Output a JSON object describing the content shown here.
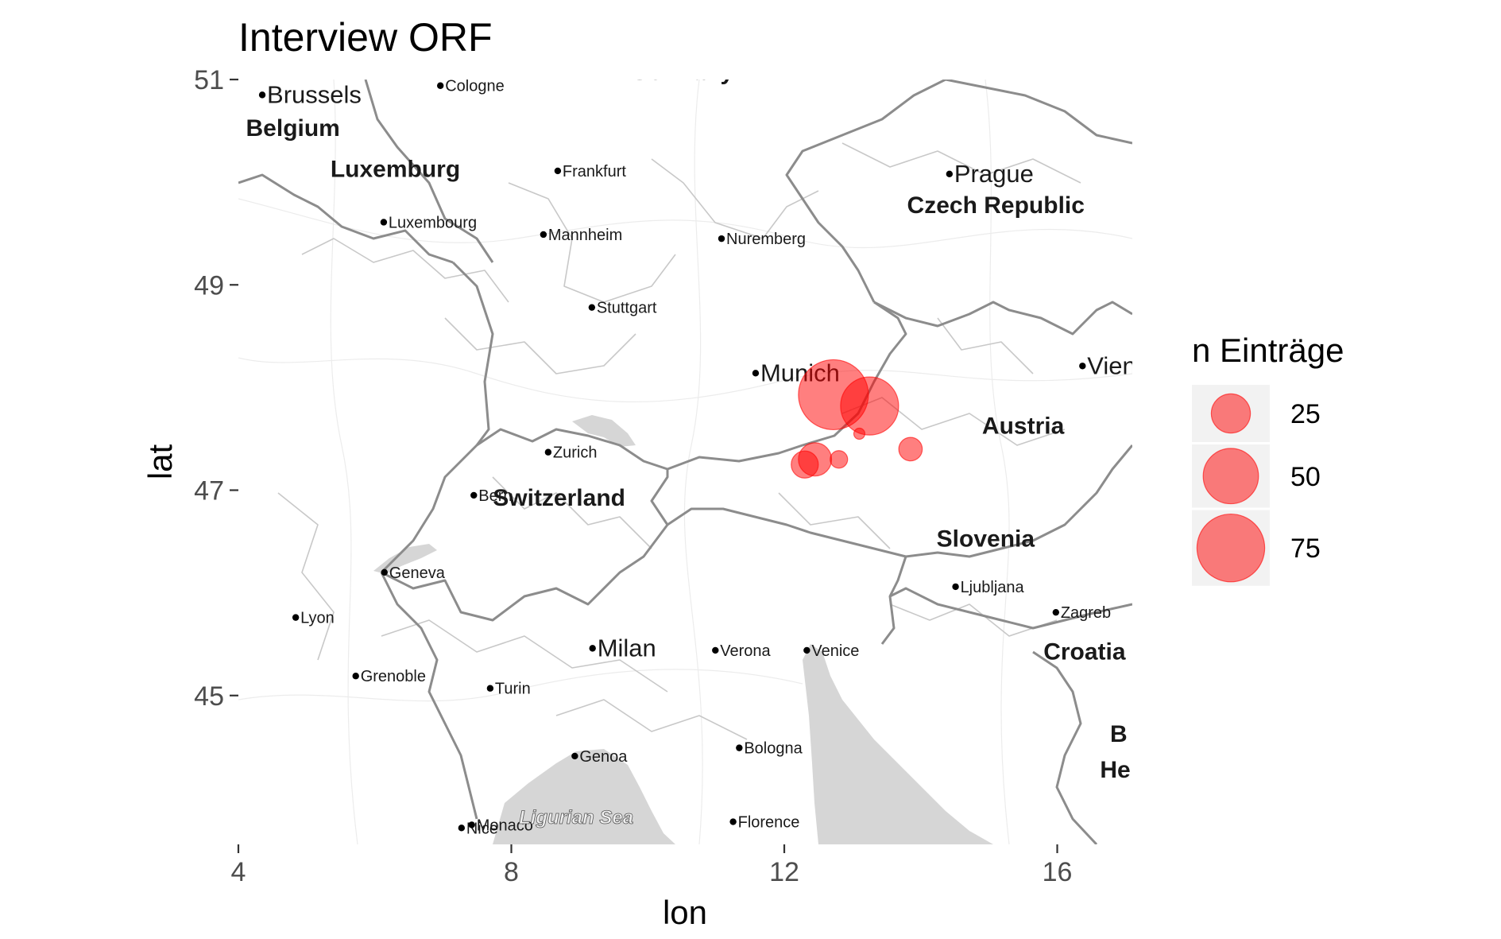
{
  "title": "Interview ORF",
  "xlabel": "lon",
  "ylabel": "lat",
  "colors": {
    "point_fill": "#ff0000",
    "point_opacity": 0.5,
    "water": "#d6d6d6",
    "legend_key_bg": "#f2f2f2"
  },
  "map": {
    "cities": [
      {
        "name": "Brussels",
        "lon": 4.35,
        "lat": 50.85,
        "size": "large"
      },
      {
        "name": "Cologne",
        "lon": 6.96,
        "lat": 50.94,
        "size": "small"
      },
      {
        "name": "Frankfurt",
        "lon": 8.68,
        "lat": 50.11,
        "size": "small"
      },
      {
        "name": "Prague",
        "lon": 14.42,
        "lat": 50.08,
        "size": "large"
      },
      {
        "name": "Luxembourg",
        "lon": 6.13,
        "lat": 49.61,
        "size": "small"
      },
      {
        "name": "Mannheim",
        "lon": 8.47,
        "lat": 49.49,
        "size": "small"
      },
      {
        "name": "Nuremberg",
        "lon": 11.08,
        "lat": 49.45,
        "size": "small"
      },
      {
        "name": "Stuttgart",
        "lon": 9.18,
        "lat": 48.78,
        "size": "small"
      },
      {
        "name": "Munich",
        "lon": 11.58,
        "lat": 48.14,
        "size": "large"
      },
      {
        "name": "Vienna",
        "lon": 16.37,
        "lat": 48.21,
        "size": "large"
      },
      {
        "name": "Zurich",
        "lon": 8.54,
        "lat": 47.37,
        "size": "small"
      },
      {
        "name": "Bern",
        "lon": 7.45,
        "lat": 46.95,
        "size": "small"
      },
      {
        "name": "Geneva",
        "lon": 6.14,
        "lat": 46.2,
        "size": "small"
      },
      {
        "name": "Lyon",
        "lon": 4.84,
        "lat": 45.76,
        "size": "small"
      },
      {
        "name": "Ljubljana",
        "lon": 14.51,
        "lat": 46.06,
        "size": "small"
      },
      {
        "name": "Zagreb",
        "lon": 15.98,
        "lat": 45.81,
        "size": "small"
      },
      {
        "name": "Milan",
        "lon": 9.19,
        "lat": 45.46,
        "size": "large"
      },
      {
        "name": "Verona",
        "lon": 10.99,
        "lat": 45.44,
        "size": "small"
      },
      {
        "name": "Venice",
        "lon": 12.33,
        "lat": 45.44,
        "size": "small"
      },
      {
        "name": "Grenoble",
        "lon": 5.72,
        "lat": 45.19,
        "size": "small"
      },
      {
        "name": "Turin",
        "lon": 7.69,
        "lat": 45.07,
        "size": "small"
      },
      {
        "name": "Bologna",
        "lon": 11.34,
        "lat": 44.49,
        "size": "small"
      },
      {
        "name": "Genoa",
        "lon": 8.93,
        "lat": 44.41,
        "size": "small"
      },
      {
        "name": "Florence",
        "lon": 11.25,
        "lat": 43.77,
        "size": "small"
      },
      {
        "name": "Nice",
        "lon": 7.27,
        "lat": 43.71,
        "size": "small"
      },
      {
        "name": "Monaco",
        "lon": 7.42,
        "lat": 43.74,
        "size": "small"
      }
    ],
    "countries": [
      {
        "name": "Belgium",
        "lon": 4.8,
        "lat": 50.45
      },
      {
        "name": "Luxemburg",
        "lon": 6.3,
        "lat": 50.05
      },
      {
        "name": "Germany",
        "lon": 10.5,
        "lat": 51.0
      },
      {
        "name": "Czech Republic",
        "lon": 15.1,
        "lat": 49.7
      },
      {
        "name": "Austria",
        "lon": 15.5,
        "lat": 47.55
      },
      {
        "name": "Switzerland",
        "lon": 8.7,
        "lat": 46.85
      },
      {
        "name": "Slovenia",
        "lon": 14.95,
        "lat": 46.45
      },
      {
        "name": "Croatia",
        "lon": 16.4,
        "lat": 45.35
      },
      {
        "name": "B",
        "lon": 16.9,
        "lat": 44.55
      },
      {
        "name": "He",
        "lon": 16.85,
        "lat": 44.2
      }
    ],
    "seas": [
      {
        "name": "Ligurian Sea",
        "lon": 8.95,
        "lat": 43.75
      }
    ]
  },
  "chart_data": {
    "type": "scatter",
    "title": "Interview ORF",
    "xlabel": "lon",
    "ylabel": "lat",
    "xlim": [
      4.0,
      17.1
    ],
    "ylim": [
      43.55,
      51.0
    ],
    "xticks": [
      4,
      8,
      12,
      16
    ],
    "yticks": [
      45,
      47,
      49,
      51
    ],
    "size_legend": {
      "title": "n Einträge",
      "breaks": [
        25,
        50,
        75
      ]
    },
    "points": [
      {
        "lon": 12.72,
        "lat": 47.93,
        "n": 80
      },
      {
        "lon": 13.25,
        "lat": 47.82,
        "n": 55
      },
      {
        "lon": 12.45,
        "lat": 47.3,
        "n": 18
      },
      {
        "lon": 12.3,
        "lat": 47.25,
        "n": 12
      },
      {
        "lon": 13.85,
        "lat": 47.4,
        "n": 9
      },
      {
        "lon": 12.8,
        "lat": 47.3,
        "n": 5
      },
      {
        "lon": 13.1,
        "lat": 47.55,
        "n": 2
      }
    ]
  }
}
